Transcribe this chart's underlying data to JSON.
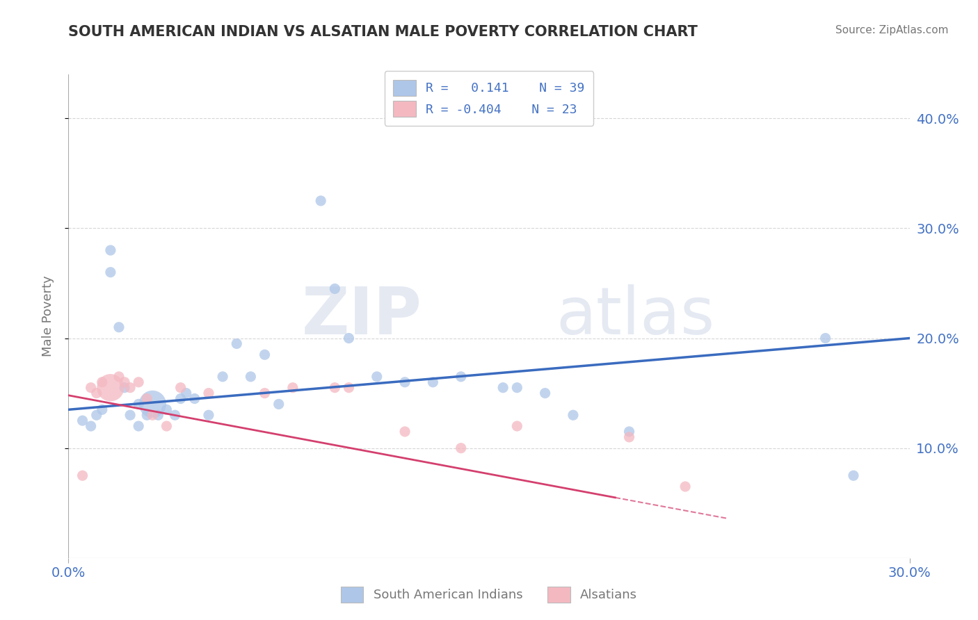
{
  "title": "SOUTH AMERICAN INDIAN VS ALSATIAN MALE POVERTY CORRELATION CHART",
  "source": "Source: ZipAtlas.com",
  "ylabel": "Male Poverty",
  "xlim": [
    0.0,
    0.3
  ],
  "ylim": [
    0.0,
    0.44
  ],
  "x_ticks": [
    0.0,
    0.3
  ],
  "x_tick_labels": [
    "0.0%",
    "30.0%"
  ],
  "y_ticks": [
    0.1,
    0.2,
    0.3,
    0.4
  ],
  "y_tick_labels": [
    "10.0%",
    "20.0%",
    "30.0%",
    "40.0%"
  ],
  "legend_entries": [
    {
      "color": "#aec6e8",
      "label": "South American Indians",
      "R": "0.141",
      "N": "39"
    },
    {
      "color": "#f4b8c1",
      "label": "Alsatians",
      "R": "-0.404",
      "N": "23"
    }
  ],
  "blue_scatter_x": [
    0.005,
    0.008,
    0.01,
    0.012,
    0.015,
    0.015,
    0.018,
    0.02,
    0.022,
    0.025,
    0.025,
    0.028,
    0.03,
    0.032,
    0.035,
    0.038,
    0.04,
    0.042,
    0.045,
    0.05,
    0.055,
    0.06,
    0.065,
    0.07,
    0.075,
    0.09,
    0.095,
    0.1,
    0.11,
    0.12,
    0.13,
    0.14,
    0.155,
    0.16,
    0.17,
    0.18,
    0.2,
    0.27,
    0.28
  ],
  "blue_scatter_y": [
    0.125,
    0.12,
    0.13,
    0.135,
    0.26,
    0.28,
    0.21,
    0.155,
    0.13,
    0.14,
    0.12,
    0.13,
    0.14,
    0.13,
    0.135,
    0.13,
    0.145,
    0.15,
    0.145,
    0.13,
    0.165,
    0.195,
    0.165,
    0.185,
    0.14,
    0.325,
    0.245,
    0.2,
    0.165,
    0.16,
    0.16,
    0.165,
    0.155,
    0.155,
    0.15,
    0.13,
    0.115,
    0.2,
    0.075
  ],
  "blue_scatter_size": [
    120,
    120,
    120,
    120,
    120,
    120,
    120,
    120,
    120,
    120,
    120,
    120,
    800,
    120,
    120,
    120,
    120,
    120,
    120,
    120,
    120,
    120,
    120,
    120,
    120,
    120,
    120,
    120,
    120,
    120,
    120,
    120,
    120,
    120,
    120,
    120,
    120,
    120,
    120
  ],
  "pink_scatter_x": [
    0.005,
    0.008,
    0.01,
    0.012,
    0.015,
    0.018,
    0.02,
    0.022,
    0.025,
    0.028,
    0.03,
    0.035,
    0.04,
    0.05,
    0.07,
    0.08,
    0.095,
    0.1,
    0.12,
    0.14,
    0.16,
    0.2,
    0.22
  ],
  "pink_scatter_y": [
    0.075,
    0.155,
    0.15,
    0.16,
    0.155,
    0.165,
    0.16,
    0.155,
    0.16,
    0.145,
    0.13,
    0.12,
    0.155,
    0.15,
    0.15,
    0.155,
    0.155,
    0.155,
    0.115,
    0.1,
    0.12,
    0.11,
    0.065
  ],
  "pink_scatter_size": [
    120,
    120,
    120,
    120,
    800,
    120,
    120,
    120,
    120,
    120,
    120,
    120,
    120,
    120,
    120,
    120,
    120,
    120,
    120,
    120,
    120,
    120,
    120
  ],
  "blue_line": {
    "x0": 0.0,
    "x1": 0.3,
    "y0": 0.135,
    "y1": 0.2
  },
  "pink_line_solid": {
    "x0": 0.0,
    "x1": 0.195,
    "y0": 0.148,
    "y1": 0.055
  },
  "pink_line_dashed": {
    "x0": 0.195,
    "x1": 0.235,
    "y0": 0.055,
    "y1": 0.036
  },
  "blue_line_color": "#3a6bbf",
  "pink_line_color": "#d43f6e",
  "blue_color": "#aec6e8",
  "pink_color": "#f4b8c1",
  "grid_color": "#cccccc",
  "background_color": "#ffffff",
  "title_color": "#333333",
  "source_color": "#777777",
  "tick_label_color": "#4472c4",
  "axis_label_color": "#777777"
}
